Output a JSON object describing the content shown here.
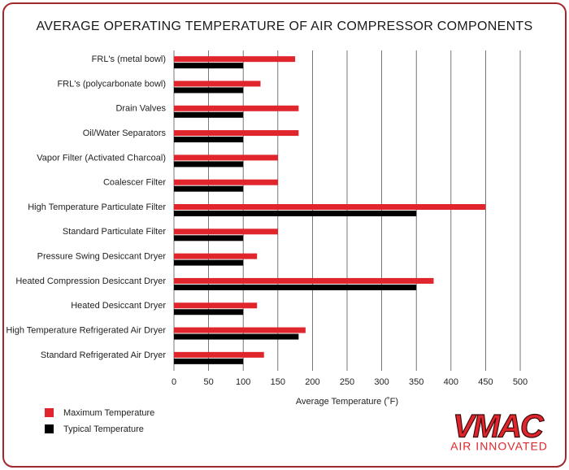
{
  "chart_data": {
    "type": "hbar",
    "title": "AVERAGE OPERATING TEMPERATURE OF AIR COMPRESSOR COMPONENTS",
    "x_label": "Average Temperature (˚F)",
    "categories": [
      "FRL's (metal bowl)",
      "FRL's (polycarbonate bowl)",
      "Drain Valves",
      "Oil/Water Separators",
      "Vapor Filter (Activated Charcoal)",
      "Coalescer Filter",
      "High Temperature Particulate Filter",
      "Standard Particulate Filter",
      "Pressure Swing Desiccant Dryer",
      "Heated Compression Desiccant Dryer",
      "Heated Desiccant Dryer",
      "High Temperature Refrigerated Air Dryer",
      "Standard Refrigerated Air Dryer"
    ],
    "series": [
      {
        "name": "Maximum Temperature",
        "color": "#e0262c",
        "values": [
          175,
          125,
          180,
          180,
          150,
          150,
          450,
          150,
          120,
          375,
          120,
          190,
          130
        ]
      },
      {
        "name": "Typical Temperature",
        "color": "#000000",
        "values": [
          100,
          100,
          100,
          100,
          100,
          100,
          350,
          100,
          100,
          350,
          100,
          180,
          100
        ]
      }
    ],
    "xlim": [
      0,
      500
    ],
    "xticks": [
      0,
      50,
      100,
      150,
      200,
      250,
      300,
      350,
      400,
      450,
      500
    ],
    "grid": true,
    "legend": "bottom-left",
    "logo": {
      "name": "VMAC",
      "tagline": "AIR INNOVATED"
    }
  }
}
